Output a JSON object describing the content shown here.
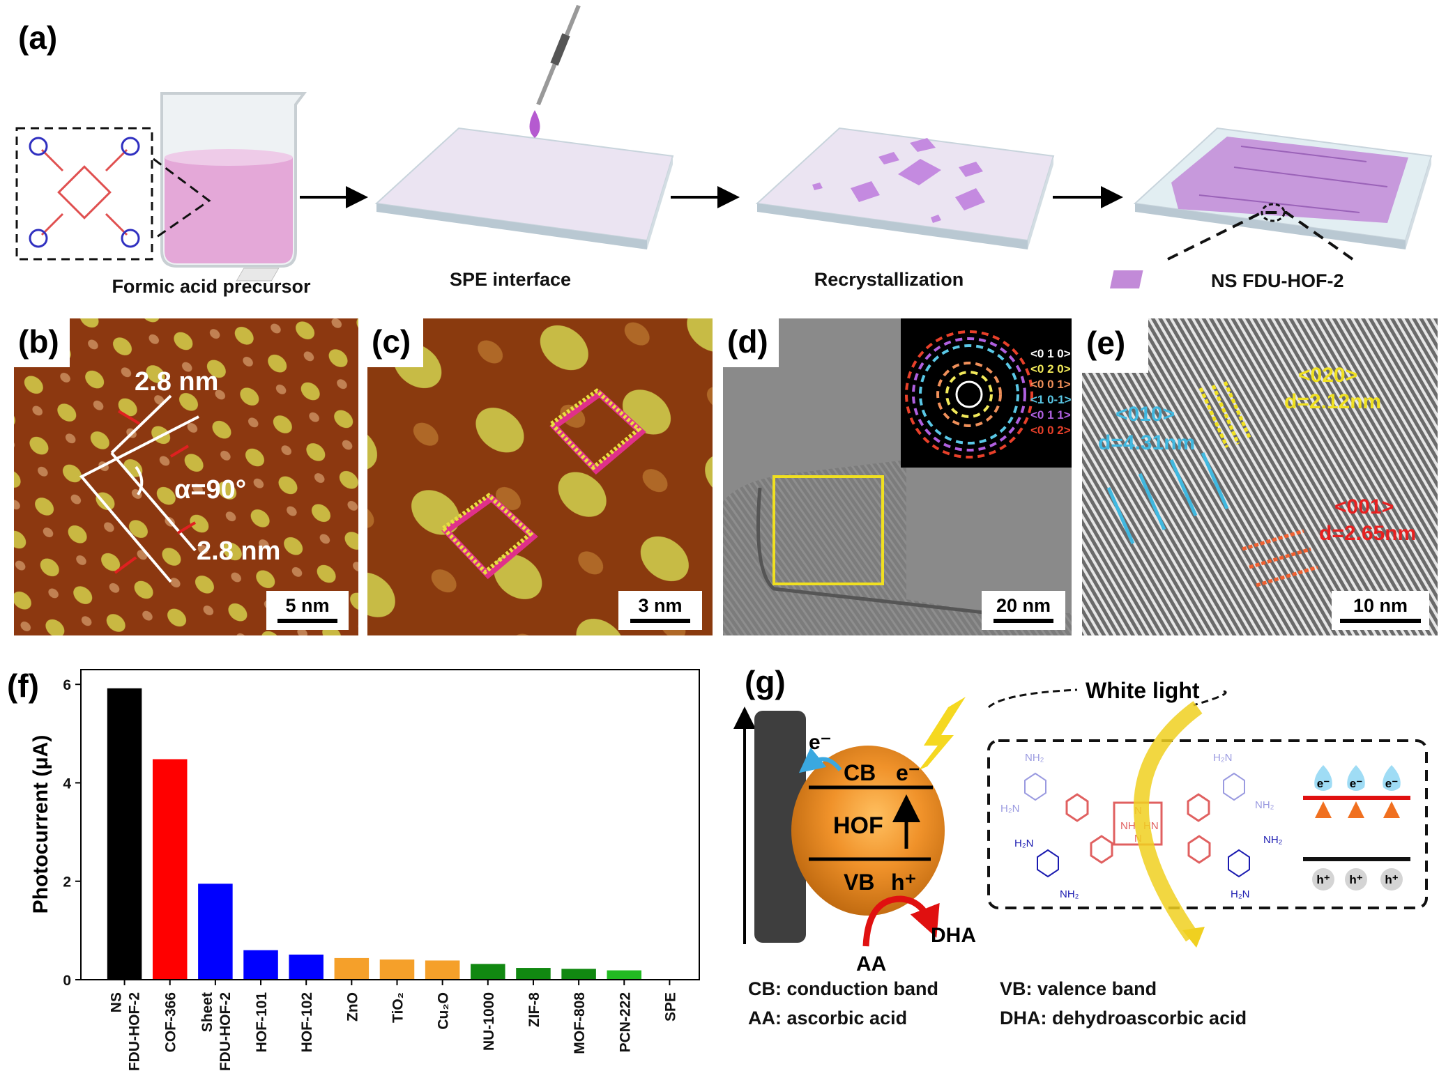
{
  "panels": {
    "a": {
      "label": "(a)",
      "captions": [
        "Formic acid precursor",
        "SPE interface",
        "Recrystallization",
        "NS FDU-HOF-2"
      ]
    },
    "b": {
      "label": "(b)",
      "dist1": "2.8 nm",
      "angle": "α=90°",
      "dist2": "2.8 nm",
      "scale_bar": "5 nm"
    },
    "c": {
      "label": "(c)",
      "scale_bar": "3 nm"
    },
    "d": {
      "label": "(d)",
      "scale_bar": "20 nm",
      "fft_legend": [
        {
          "text": "<0 1 0>",
          "color": "#ffffff"
        },
        {
          "text": "<0 2 0>",
          "color": "#f2ea5a"
        },
        {
          "text": "<0 0 1>",
          "color": "#f0905a"
        },
        {
          "text": "<1 0-1>",
          "color": "#5ac8e6"
        },
        {
          "text": "<0 1 1>",
          "color": "#b060e0"
        },
        {
          "text": "<0 0 2>",
          "color": "#e8402a"
        }
      ]
    },
    "e": {
      "label": "(e)",
      "scale_bar": "10 nm",
      "p020": "<020>",
      "d020": "d=2.12nm",
      "p010": "<010>",
      "d010": "d=4.31nm",
      "p001": "<001>",
      "d001": "d=2.65nm"
    },
    "f": {
      "label": "(f)"
    },
    "g": {
      "label": "(g)",
      "white_light": "White light",
      "electron": "e⁻",
      "cb": "CB",
      "cb_e": "e⁻",
      "hof": "HOF",
      "vb": "VB",
      "vb_h": "h⁺",
      "aa": "AA",
      "dha": "DHA",
      "legend": [
        "CB: conduction band",
        "VB: valence band",
        "AA: ascorbic acid",
        "DHA: dehydroascorbic acid"
      ],
      "molecule": {
        "nh2": "NH₂",
        "h2n": "H₂N",
        "nh": "NH",
        "hn": "HN",
        "n": "N"
      },
      "levels": {
        "e": "e⁻",
        "h": "h⁺"
      }
    }
  },
  "chart_data": {
    "type": "bar",
    "title": "",
    "xlabel": "",
    "ylabel": "Photocurrent (μA)",
    "ylim": [
      0,
      6.3
    ],
    "yticks": [
      "0",
      "2",
      "4",
      "6"
    ],
    "categories": [
      [
        "NS",
        "FDU-HOF-2"
      ],
      [
        "COF-366"
      ],
      [
        "Sheet",
        "FDU-HOF-2"
      ],
      [
        "HOF-101"
      ],
      [
        "HOF-102"
      ],
      [
        "ZnO"
      ],
      [
        "TiO₂"
      ],
      [
        "Cu₂O"
      ],
      [
        "NU-1000"
      ],
      [
        "ZIF-8"
      ],
      [
        "MOF-808"
      ],
      [
        "PCN-222"
      ],
      [
        "SPE"
      ]
    ],
    "values": [
      5.92,
      4.48,
      1.95,
      0.6,
      0.51,
      0.44,
      0.41,
      0.39,
      0.32,
      0.24,
      0.22,
      0.19,
      0.0
    ],
    "colors": [
      "#000000",
      "#ff0000",
      "#0000ff",
      "#0000ff",
      "#0000ff",
      "#f5a02a",
      "#f5a02a",
      "#f5a02a",
      "#118811",
      "#118811",
      "#118811",
      "#22bb22",
      "#888888"
    ],
    "grid": false
  }
}
